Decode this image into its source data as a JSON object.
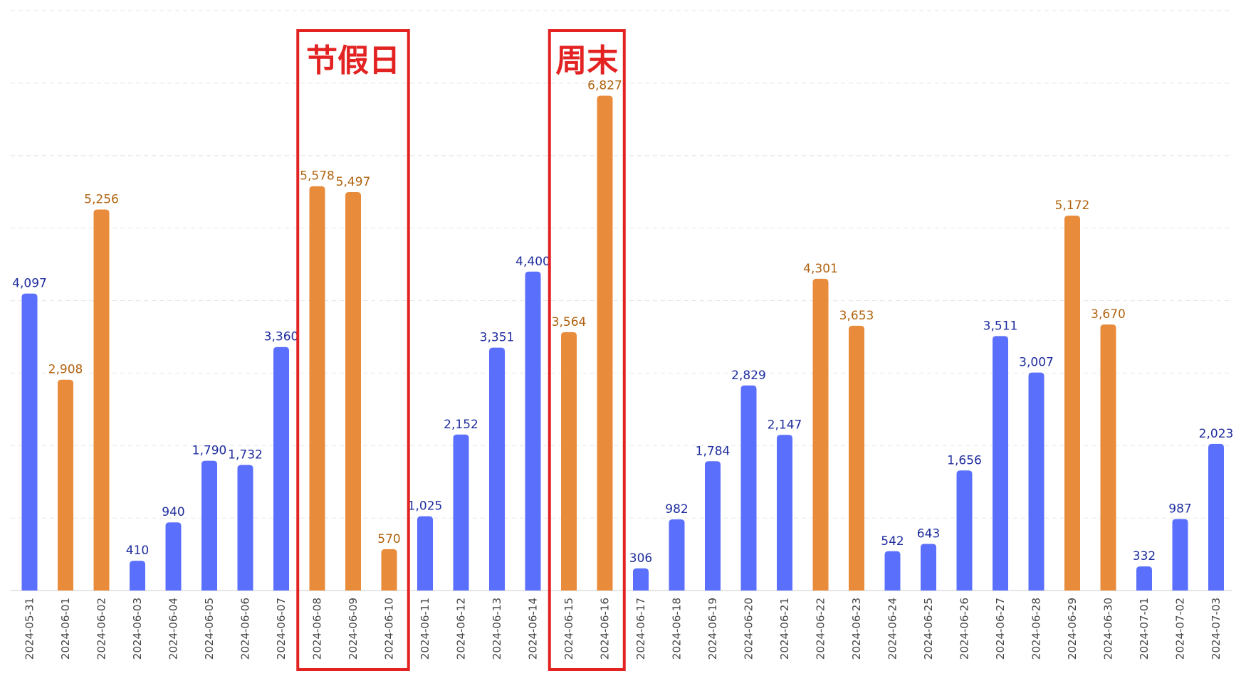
{
  "chart_data": {
    "type": "bar",
    "title": "",
    "xlabel": "",
    "ylabel": "",
    "ylim": [
      0,
      8000
    ],
    "grid": true,
    "categories": [
      "2024-05-31",
      "2024-06-01",
      "2024-06-02",
      "2024-06-03",
      "2024-06-04",
      "2024-06-05",
      "2024-06-06",
      "2024-06-07",
      "2024-06-08",
      "2024-06-09",
      "2024-06-10",
      "2024-06-11",
      "2024-06-12",
      "2024-06-13",
      "2024-06-14",
      "2024-06-15",
      "2024-06-16",
      "2024-06-17",
      "2024-06-18",
      "2024-06-19",
      "2024-06-20",
      "2024-06-21",
      "2024-06-22",
      "2024-06-23",
      "2024-06-24",
      "2024-06-25",
      "2024-06-26",
      "2024-06-27",
      "2024-06-28",
      "2024-06-29",
      "2024-06-30",
      "2024-07-01",
      "2024-07-02",
      "2024-07-03"
    ],
    "values": [
      4097,
      2908,
      5256,
      410,
      940,
      1790,
      1732,
      3360,
      5578,
      5497,
      570,
      1025,
      2152,
      3351,
      4400,
      3564,
      6827,
      306,
      982,
      1784,
      2829,
      2147,
      4301,
      3653,
      542,
      643,
      1656,
      3511,
      3007,
      5172,
      3670,
      332,
      987,
      2023
    ],
    "value_labels": [
      "4,097",
      "2,908",
      "5,256",
      "410",
      "940",
      "1,790",
      "1,732",
      "3,360",
      "5,578",
      "5,497",
      "570",
      "1,025",
      "2,152",
      "3,351",
      "4,400",
      "3,564",
      "6,827",
      "306",
      "982",
      "1,784",
      "2,829",
      "2,147",
      "4,301",
      "3,653",
      "542",
      "643",
      "1,656",
      "3,511",
      "3,007",
      "5,172",
      "3,670",
      "332",
      "987",
      "2,023"
    ],
    "bar_kind": [
      "weekday",
      "weekend",
      "weekend",
      "weekday",
      "weekday",
      "weekday",
      "weekday",
      "weekday",
      "weekend",
      "weekend",
      "weekend",
      "weekday",
      "weekday",
      "weekday",
      "weekday",
      "weekend",
      "weekend",
      "weekday",
      "weekday",
      "weekday",
      "weekday",
      "weekday",
      "weekend",
      "weekend",
      "weekday",
      "weekday",
      "weekday",
      "weekday",
      "weekday",
      "weekend",
      "weekend",
      "weekday",
      "weekday",
      "weekday"
    ],
    "colors": {
      "weekday_bar": "#5b6ffd",
      "weekend_bar": "#e88b3b",
      "weekday_label": "#1f2d9e",
      "weekend_label": "#b0630f",
      "highlight": "#e32222"
    },
    "annotations": [
      {
        "text": "节假日",
        "from": "2024-06-08",
        "to": "2024-06-10"
      },
      {
        "text": "周末",
        "from": "2024-06-15",
        "to": "2024-06-16"
      }
    ]
  }
}
